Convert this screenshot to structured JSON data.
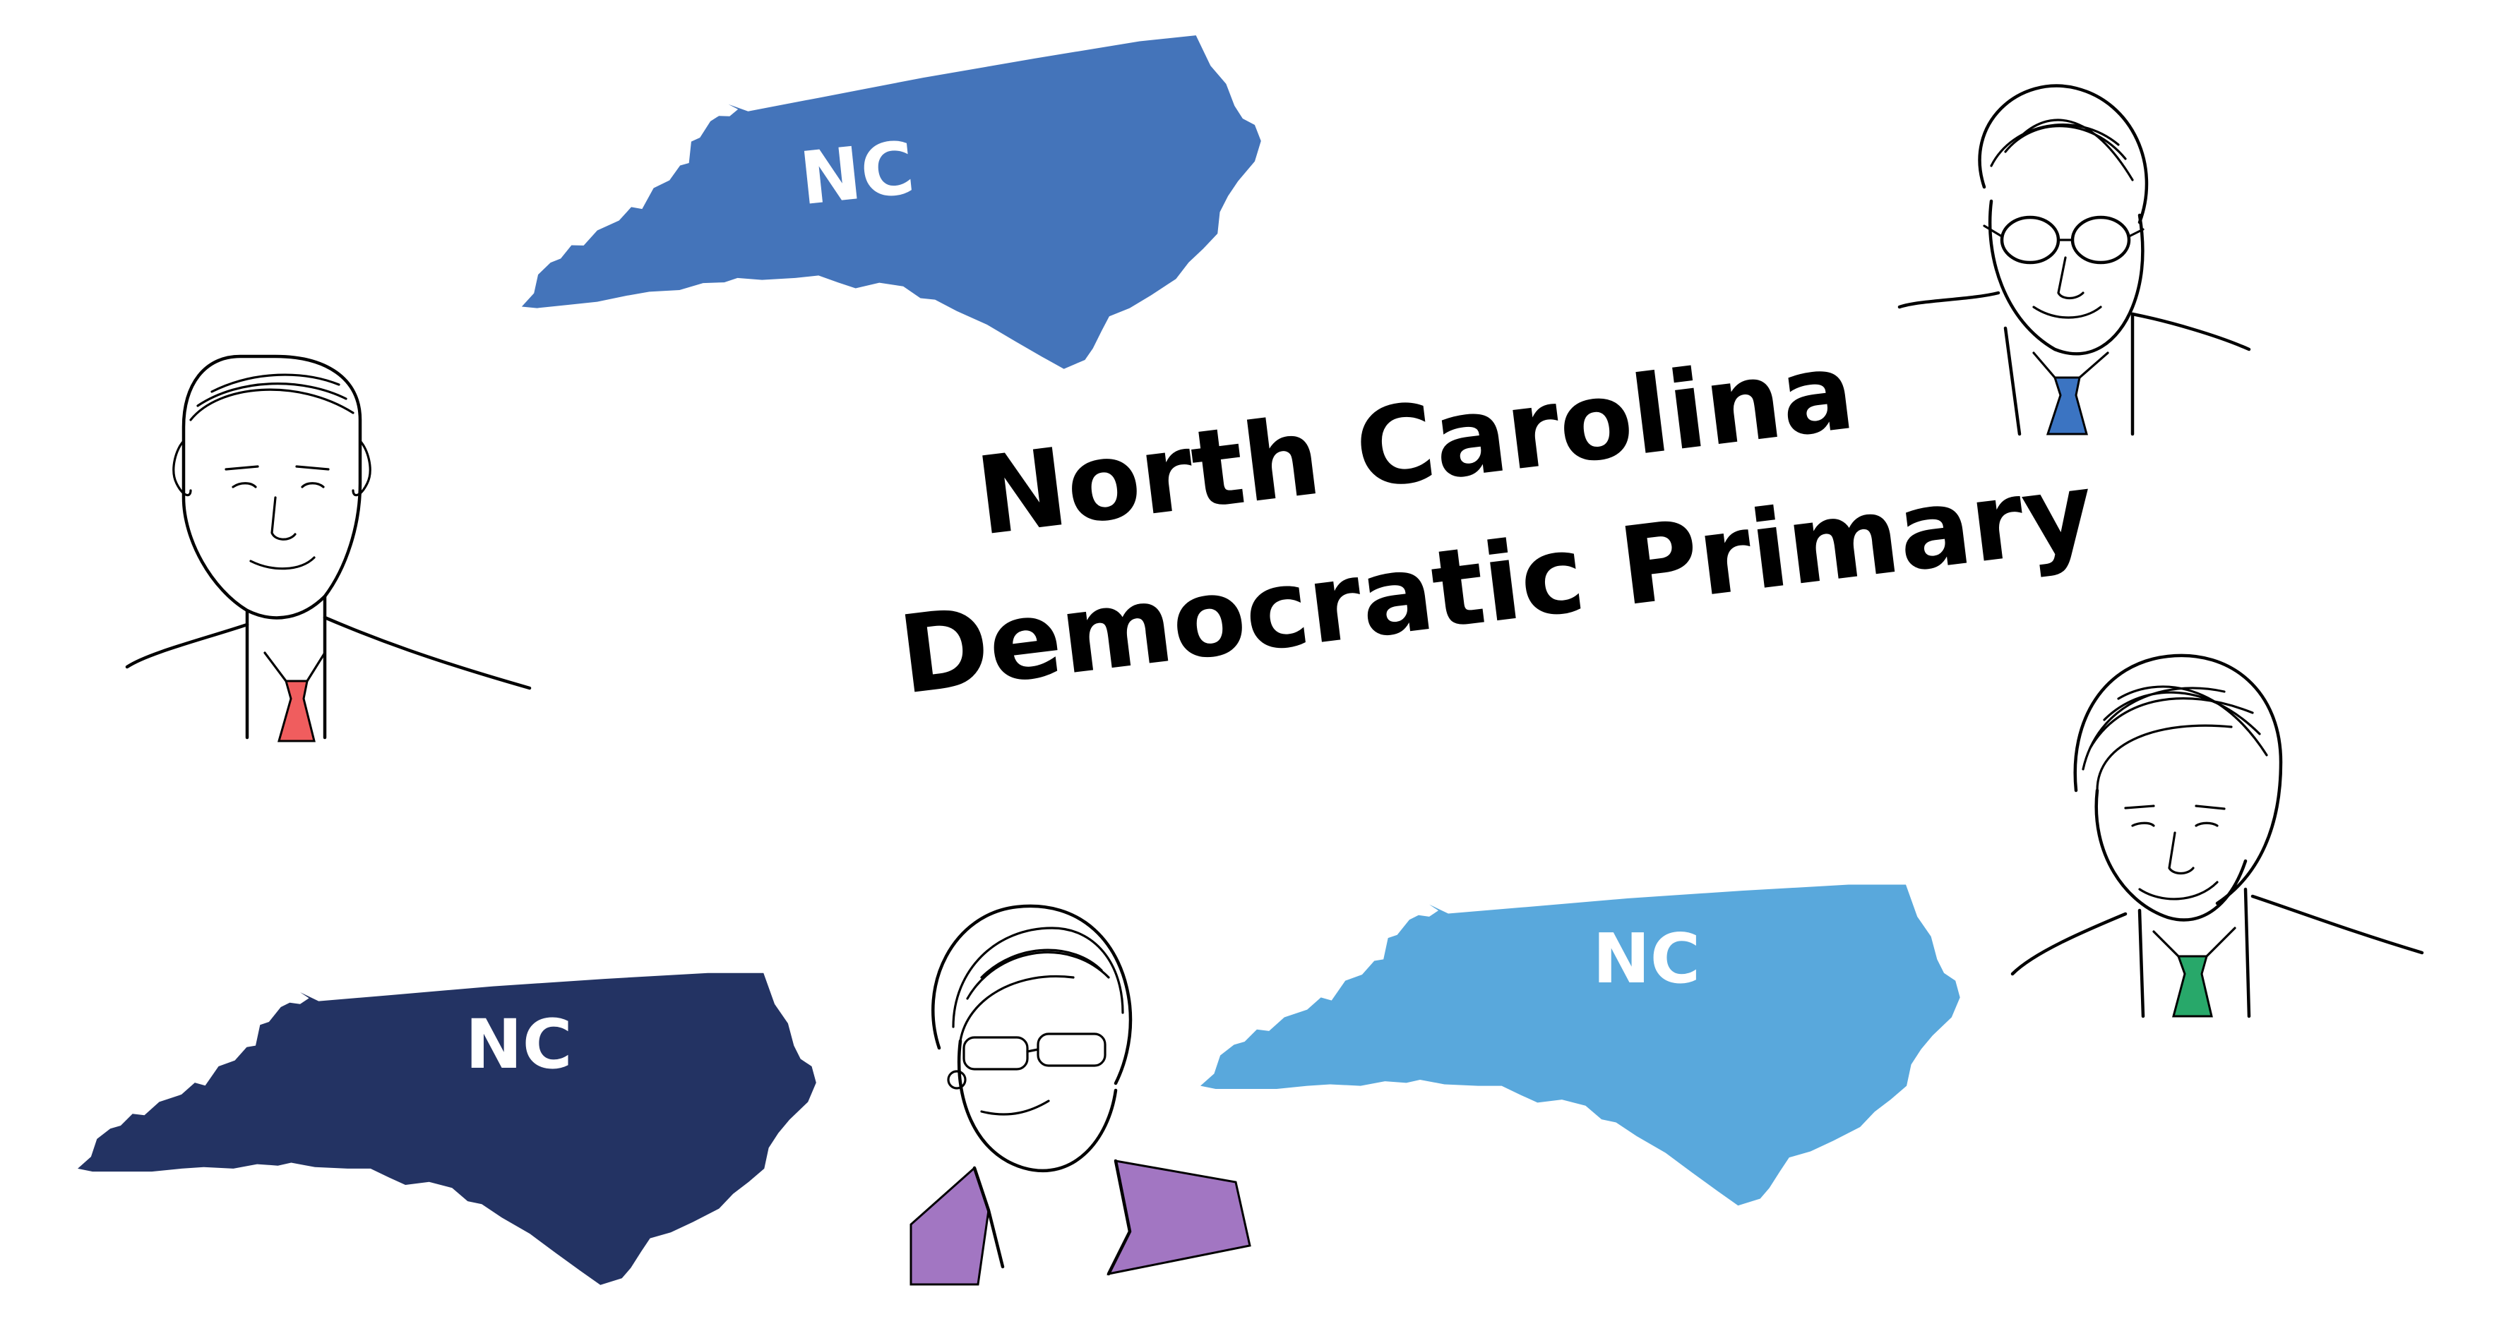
{
  "title": {
    "line1": "North Carolina",
    "line2": "Democratic Primary"
  },
  "maps": [
    {
      "label": "NC",
      "color": "#4474ba"
    },
    {
      "label": "NC",
      "color": "#233363"
    },
    {
      "label": "NC",
      "color": "#59a8dc"
    }
  ],
  "portraits": [
    {
      "icon": "candidate-portrait-icon",
      "tie_color": "#f05d5e"
    },
    {
      "icon": "candidate-portrait-icon",
      "tie_color": "#3b74c2"
    },
    {
      "icon": "candidate-portrait-icon",
      "jacket_color": "#a276c2"
    },
    {
      "icon": "candidate-portrait-icon",
      "tie_color": "#28a86a"
    }
  ],
  "colors": {
    "background": "#ffffff",
    "text": "#000000",
    "line_art": "#000000"
  }
}
